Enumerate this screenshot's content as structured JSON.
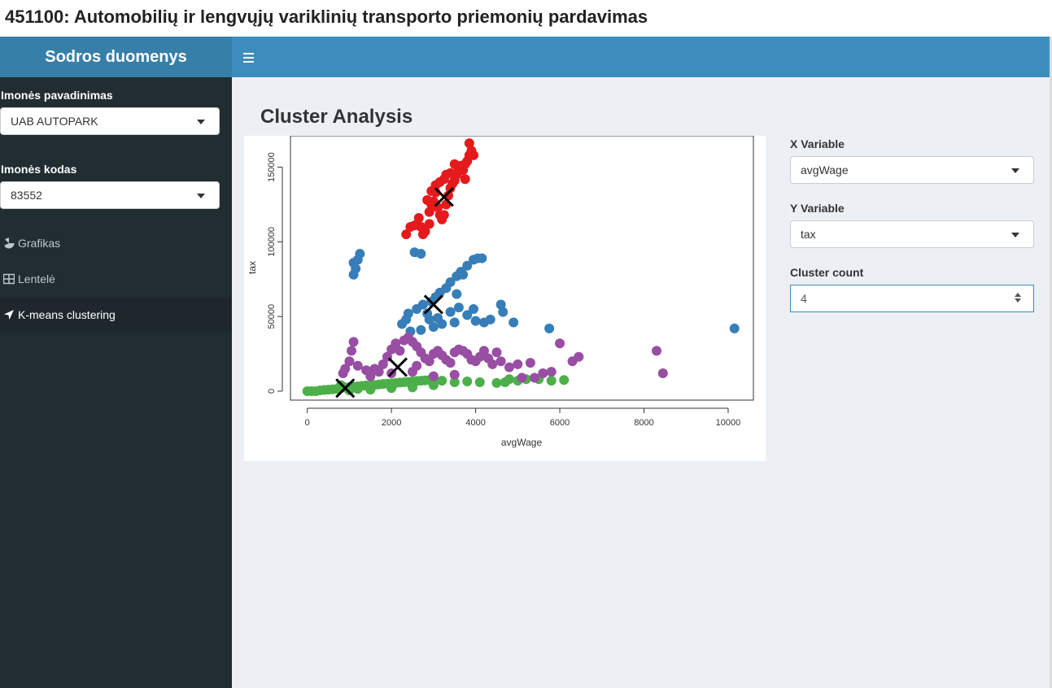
{
  "page": {
    "title": "451100: Automobilių ir lengvųjų variklinių transporto priemonių pardavimas"
  },
  "header": {
    "logo": "Sodros duomenys",
    "toggle_icon": "hamburger-icon"
  },
  "sidebar": {
    "company_name_label": "Imonės pavadinimas",
    "company_name_value": "UAB AUTOPARK",
    "company_code_label": "Imonės kodas",
    "company_code_value": "83552",
    "menu": [
      {
        "label": "Grafikas",
        "icon": "chart-icon"
      },
      {
        "label": "Lentelė",
        "icon": "table-icon"
      },
      {
        "label": "K-means clustering",
        "icon": "cluster-icon",
        "active": true
      }
    ]
  },
  "main": {
    "title": "Cluster Analysis",
    "x_variable_label": "X Variable",
    "x_variable_value": "avgWage",
    "y_variable_label": "Y Variable",
    "y_variable_value": "tax",
    "cluster_count_label": "Cluster count",
    "cluster_count_value": "4"
  },
  "colors": {
    "cluster1": "#E41A1C",
    "cluster2": "#377EB8",
    "cluster3": "#4DAF4A",
    "cluster4": "#984EA3",
    "navbar": "#3c8dbc",
    "sidebar": "#222d32"
  },
  "chart_data": {
    "type": "scatter",
    "xlabel": "avgWage",
    "ylabel": "tax",
    "xlim": [
      -400,
      10600
    ],
    "ylim": [
      -6000,
      171000
    ],
    "xticks": [
      0,
      2000,
      4000,
      6000,
      8000,
      10000
    ],
    "yticks": [
      0,
      50000,
      100000,
      150000
    ],
    "series": [
      {
        "color": "#E41A1C",
        "points": [
          [
            2350,
            105000
          ],
          [
            2450,
            110000
          ],
          [
            2550,
            111000
          ],
          [
            2700,
            110000
          ],
          [
            2750,
            105000
          ],
          [
            2800,
            107000
          ],
          [
            2900,
            112000
          ],
          [
            2900,
            120000
          ],
          [
            2950,
            125000
          ],
          [
            3000,
            127000
          ],
          [
            2850,
            128000
          ],
          [
            2950,
            134000
          ],
          [
            3050,
            138000
          ],
          [
            3150,
            140000
          ],
          [
            3250,
            142000
          ],
          [
            3200,
            115000
          ],
          [
            3150,
            118000
          ],
          [
            3300,
            125000
          ],
          [
            3350,
            131000
          ],
          [
            3400,
            136000
          ],
          [
            3450,
            139000
          ],
          [
            3500,
            141000
          ],
          [
            3550,
            145000
          ],
          [
            3600,
            149000
          ],
          [
            3650,
            151000
          ],
          [
            3700,
            148000
          ],
          [
            3750,
            152000
          ],
          [
            3800,
            154000
          ],
          [
            3850,
            158000
          ],
          [
            3900,
            161000
          ],
          [
            3950,
            158000
          ],
          [
            3850,
            166000
          ],
          [
            3750,
            142000
          ],
          [
            3500,
            152000
          ],
          [
            3300,
            145000
          ],
          [
            3050,
            133000
          ],
          [
            2650,
            116000
          ],
          [
            3100,
            123000
          ],
          [
            3250,
            118000
          ],
          [
            3400,
            146000
          ]
        ],
        "centers": [
          [
            3250,
            130000
          ]
        ]
      },
      {
        "color": "#377EB8",
        "points": [
          [
            1100,
            78000
          ],
          [
            1150,
            82000
          ],
          [
            1100,
            86000
          ],
          [
            1200,
            88000
          ],
          [
            1250,
            92000
          ],
          [
            2550,
            93000
          ],
          [
            2700,
            92000
          ],
          [
            2250,
            45000
          ],
          [
            2350,
            48000
          ],
          [
            2400,
            52000
          ],
          [
            2600,
            55000
          ],
          [
            2750,
            58000
          ],
          [
            2850,
            52000
          ],
          [
            2900,
            48000
          ],
          [
            2950,
            60000
          ],
          [
            3050,
            63000
          ],
          [
            3150,
            66000
          ],
          [
            3300,
            69000
          ],
          [
            3400,
            73000
          ],
          [
            3550,
            77000
          ],
          [
            3650,
            80000
          ],
          [
            3800,
            84000
          ],
          [
            3950,
            88000
          ],
          [
            4050,
            89000
          ],
          [
            4150,
            89000
          ],
          [
            3400,
            53000
          ],
          [
            3600,
            56000
          ],
          [
            3800,
            51000
          ],
          [
            3500,
            46000
          ],
          [
            3200,
            45000
          ],
          [
            3000,
            43000
          ],
          [
            2700,
            41000
          ],
          [
            2450,
            40000
          ],
          [
            4000,
            47000
          ],
          [
            4200,
            46000
          ],
          [
            4350,
            48000
          ],
          [
            4600,
            58000
          ],
          [
            4650,
            53000
          ],
          [
            4900,
            46000
          ],
          [
            5750,
            42000
          ],
          [
            10150,
            42000
          ],
          [
            3550,
            65000
          ],
          [
            3700,
            78000
          ],
          [
            3950,
            55000
          ],
          [
            3100,
            49000
          ]
        ],
        "centers": [
          [
            3000,
            58000
          ]
        ]
      },
      {
        "color": "#4DAF4A",
        "points": [
          [
            0,
            0
          ],
          [
            100,
            0
          ],
          [
            200,
            0
          ],
          [
            300,
            500
          ],
          [
            400,
            800
          ],
          [
            500,
            1000
          ],
          [
            600,
            1200
          ],
          [
            700,
            1500
          ],
          [
            800,
            2000
          ],
          [
            900,
            2500
          ],
          [
            1000,
            2800
          ],
          [
            1100,
            3000
          ],
          [
            1200,
            3200
          ],
          [
            1300,
            3500
          ],
          [
            1400,
            3800
          ],
          [
            1500,
            4000
          ],
          [
            1600,
            4200
          ],
          [
            1700,
            4500
          ],
          [
            1800,
            4800
          ],
          [
            1900,
            5000
          ],
          [
            2000,
            5200
          ],
          [
            2100,
            5500
          ],
          [
            2200,
            5800
          ],
          [
            2300,
            6000
          ],
          [
            2400,
            6200
          ],
          [
            2500,
            6500
          ],
          [
            2600,
            6800
          ],
          [
            2700,
            7000
          ],
          [
            2800,
            7200
          ],
          [
            2900,
            7500
          ],
          [
            3000,
            7800
          ],
          [
            3200,
            7000
          ],
          [
            3500,
            6000
          ],
          [
            3800,
            6500
          ],
          [
            4100,
            6000
          ],
          [
            4500,
            5500
          ],
          [
            4700,
            6000
          ],
          [
            4800,
            8000
          ],
          [
            5000,
            7000
          ],
          [
            5200,
            8000
          ],
          [
            5500,
            8000
          ],
          [
            5800,
            7000
          ],
          [
            6100,
            7500
          ],
          [
            1500,
            1000
          ],
          [
            2000,
            2000
          ],
          [
            2500,
            2500
          ],
          [
            3000,
            4000
          ],
          [
            1000,
            500
          ],
          [
            800,
            4000
          ],
          [
            1200,
            1500
          ]
        ],
        "centers": [
          [
            900,
            2000
          ]
        ]
      },
      {
        "color": "#984EA3",
        "points": [
          [
            850,
            12000
          ],
          [
            900,
            15000
          ],
          [
            1000,
            20000
          ],
          [
            1050,
            27000
          ],
          [
            1100,
            33000
          ],
          [
            1200,
            17000
          ],
          [
            1400,
            14000
          ],
          [
            1600,
            15000
          ],
          [
            1800,
            18000
          ],
          [
            1900,
            23000
          ],
          [
            2000,
            28000
          ],
          [
            2100,
            32000
          ],
          [
            2200,
            27000
          ],
          [
            2300,
            34000
          ],
          [
            2400,
            36000
          ],
          [
            2500,
            33000
          ],
          [
            2600,
            30000
          ],
          [
            2700,
            26000
          ],
          [
            2800,
            22000
          ],
          [
            2900,
            20000
          ],
          [
            3000,
            25000
          ],
          [
            3100,
            27000
          ],
          [
            3200,
            24000
          ],
          [
            3300,
            21000
          ],
          [
            3400,
            19000
          ],
          [
            3500,
            26000
          ],
          [
            3600,
            28000
          ],
          [
            3700,
            27000
          ],
          [
            3800,
            25000
          ],
          [
            3900,
            21000
          ],
          [
            4000,
            20000
          ],
          [
            4100,
            23000
          ],
          [
            4200,
            27000
          ],
          [
            4300,
            22000
          ],
          [
            4400,
            18000
          ],
          [
            4600,
            20000
          ],
          [
            4800,
            16000
          ],
          [
            5000,
            18000
          ],
          [
            5300,
            19000
          ],
          [
            5600,
            12000
          ],
          [
            5800,
            13000
          ],
          [
            6000,
            32000
          ],
          [
            6300,
            20000
          ],
          [
            6450,
            23000
          ],
          [
            8300,
            27000
          ],
          [
            8450,
            12000
          ],
          [
            1500,
            10000
          ],
          [
            2000,
            12000
          ],
          [
            2500,
            13000
          ],
          [
            3000,
            10000
          ],
          [
            3500,
            11000
          ],
          [
            1700,
            13000
          ],
          [
            2600,
            17000
          ],
          [
            4500,
            26000
          ],
          [
            5100,
            9000
          ],
          [
            5400,
            9000
          ]
        ],
        "centers": [
          [
            2150,
            16000
          ]
        ]
      }
    ]
  }
}
